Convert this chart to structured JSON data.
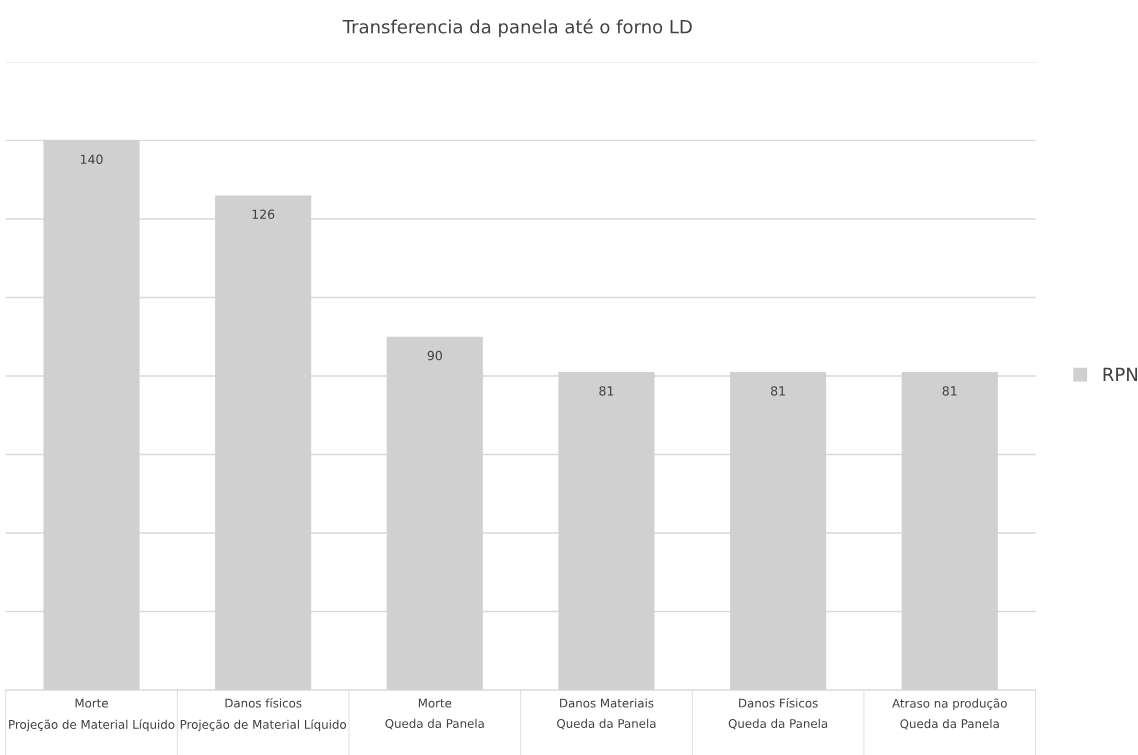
{
  "chart_data": {
    "type": "bar",
    "title": "Transferencia da panela até o forno LD",
    "categories": [
      "Morte\nProjeção de Material Líquido",
      "Danos físicos\nProjeção de Material Líquido",
      "Morte\nQueda da Panela",
      "Danos Materiais\nQueda da Panela",
      "Danos Físicos\nQueda da Panela",
      "Atraso na produção\nQueda da Panela"
    ],
    "series": [
      {
        "name": "RPN",
        "color": "#d0d0d0",
        "values": [
          140,
          126,
          90,
          81,
          81,
          81
        ]
      }
    ],
    "ylim": [
      0,
      160
    ],
    "yticks": [
      {
        "value": 0,
        "label": null
      },
      {
        "value": 20,
        "label": null
      },
      {
        "value": 40,
        "label": null
      },
      {
        "value": 60,
        "label": null
      },
      {
        "value": 80,
        "label": null
      },
      {
        "value": 100,
        "label": null
      },
      {
        "value": 120,
        "label": null
      },
      {
        "value": 140,
        "label": null
      },
      {
        "value": 160,
        "label": null
      }
    ],
    "grid": "y",
    "legend": "right",
    "data_labels": true,
    "tick_labels": "x"
  }
}
